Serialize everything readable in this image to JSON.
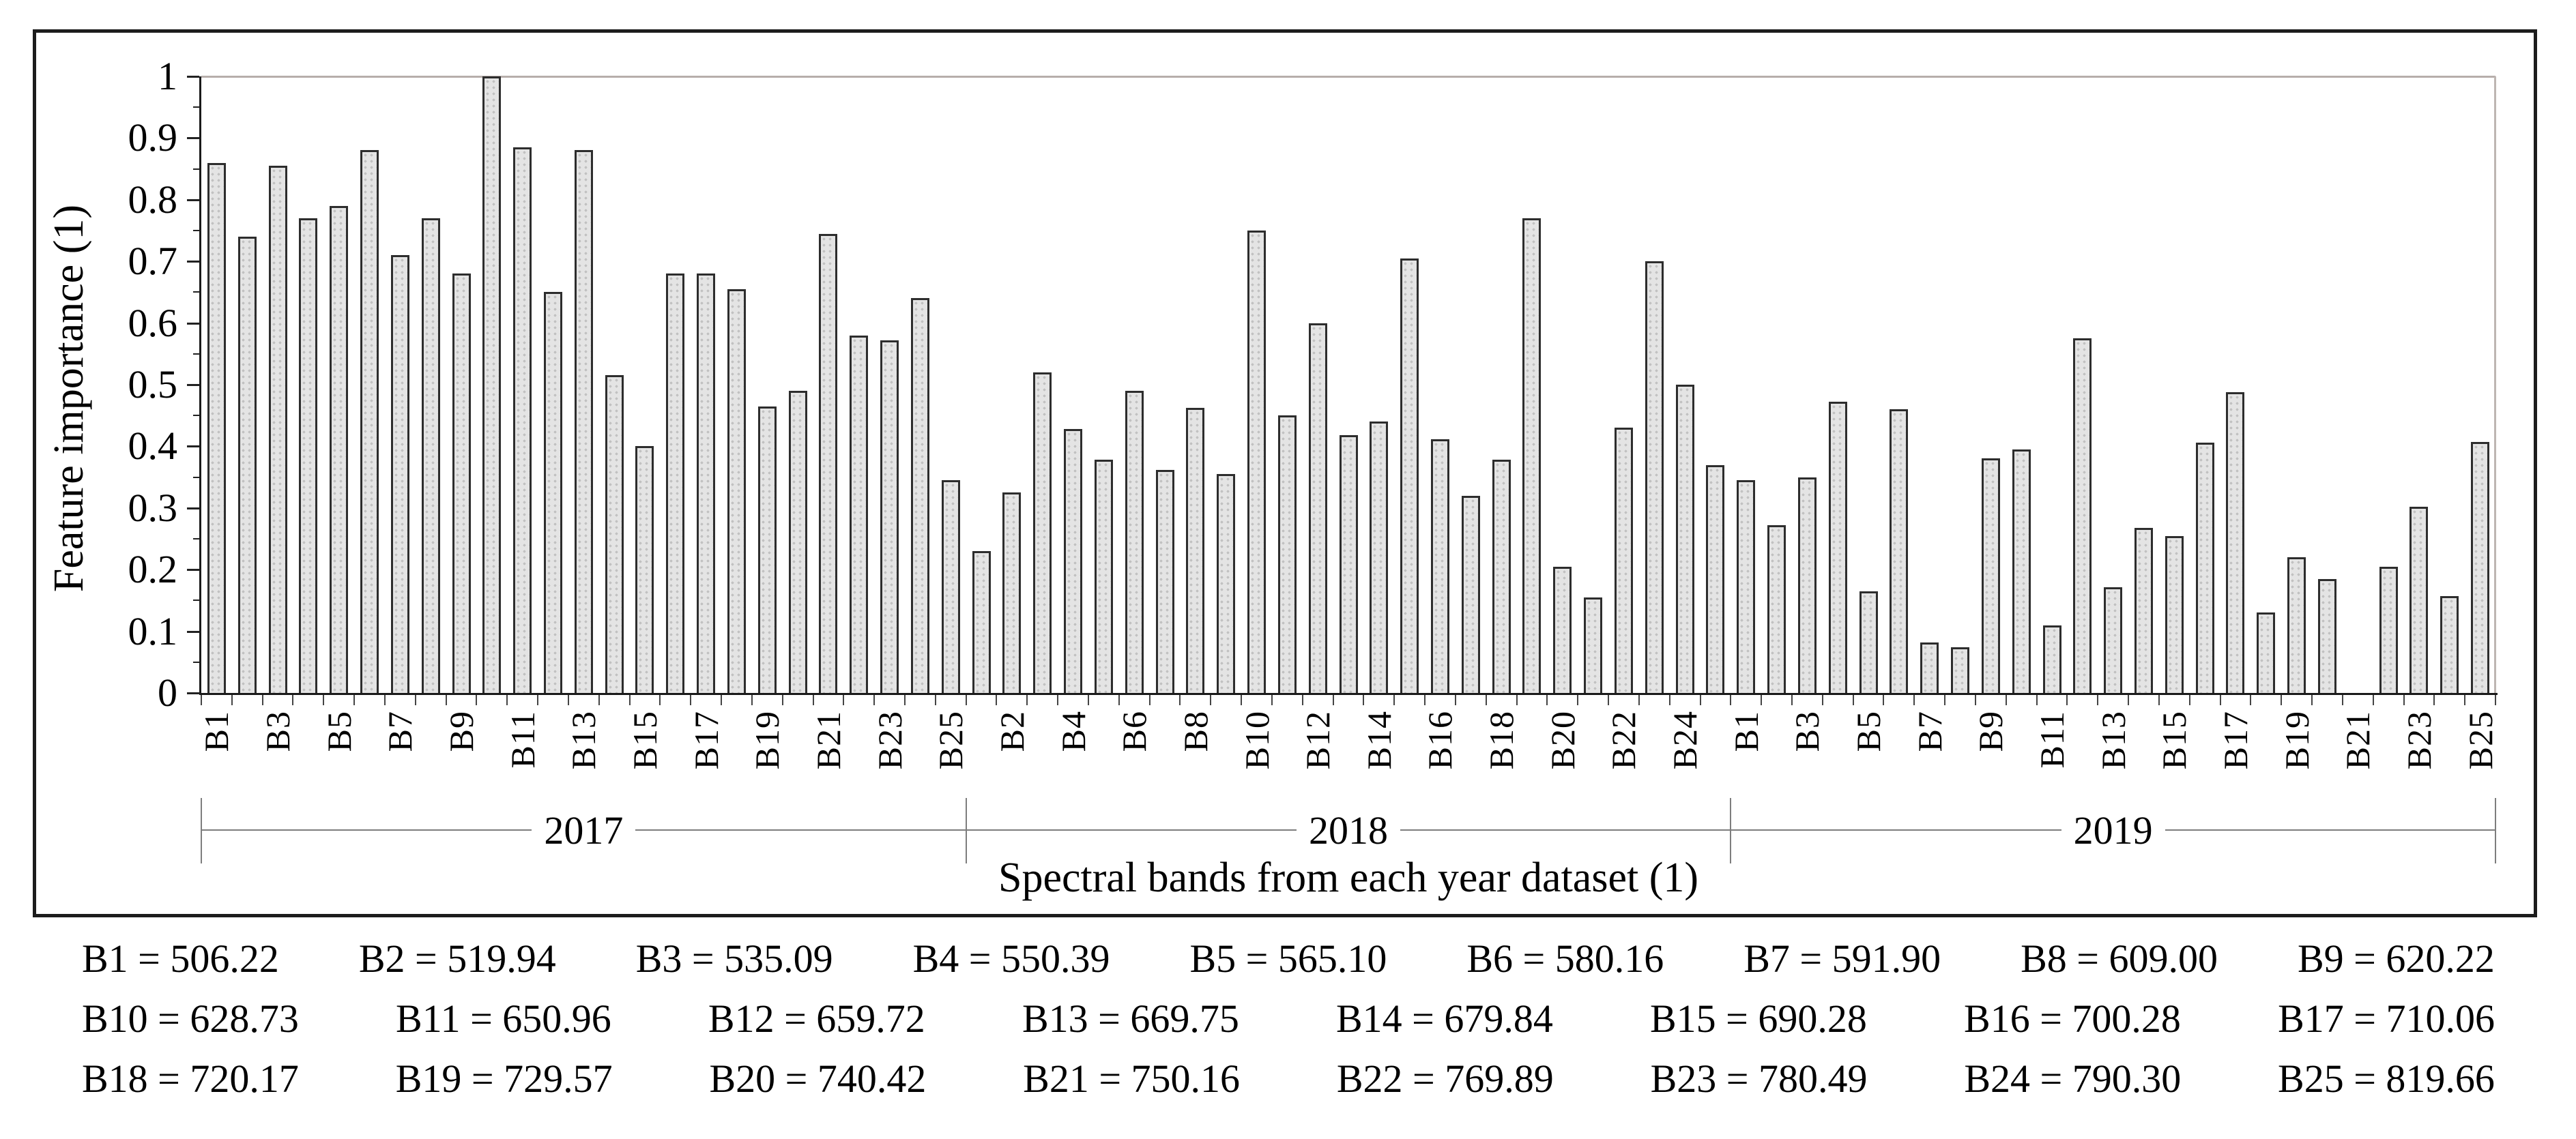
{
  "chart_data": {
    "type": "bar",
    "title": "",
    "xlabel": "Spectral bands from each year dataset (1)",
    "ylabel": "Feature importance (1)",
    "ylim": [
      0,
      1
    ],
    "y_major_step": 0.1,
    "y_minor_step": 0.05,
    "grid": "top-line-only",
    "legend_position": "none",
    "bar_fill": "#e4e4e4",
    "bar_border": "#2d2d2d",
    "tick_label_every": 2,
    "groups": [
      {
        "year": "2017",
        "categories": [
          "B1",
          "B2",
          "B3",
          "B4",
          "B5",
          "B6",
          "B7",
          "B8",
          "B9",
          "B10",
          "B11",
          "B12",
          "B13",
          "B14",
          "B15",
          "B16",
          "B17",
          "B18",
          "B19",
          "B20",
          "B21",
          "B22",
          "B23",
          "B24",
          "B25"
        ],
        "values": [
          0.86,
          0.74,
          0.855,
          0.77,
          0.79,
          0.88,
          0.71,
          0.77,
          0.68,
          1.0,
          0.885,
          0.65,
          0.88,
          0.515,
          0.4,
          0.68,
          0.68,
          0.655,
          0.465,
          0.49,
          0.745,
          0.58,
          0.572,
          0.64,
          0.345
        ]
      },
      {
        "year": "2018",
        "categories": [
          "B1",
          "B2",
          "B3",
          "B4",
          "B5",
          "B6",
          "B7",
          "B8",
          "B9",
          "B10",
          "B11",
          "B12",
          "B13",
          "B14",
          "B15",
          "B16",
          "B17",
          "B18",
          "B19",
          "B20",
          "B21",
          "B22",
          "B23",
          "B24",
          "B25"
        ],
        "values": [
          0.23,
          0.325,
          0.52,
          0.428,
          0.378,
          0.49,
          0.362,
          0.462,
          0.355,
          0.75,
          0.45,
          0.6,
          0.418,
          0.44,
          0.705,
          0.412,
          0.32,
          0.378,
          0.77,
          0.205,
          0.155,
          0.43,
          0.7,
          0.5,
          0.37
        ]
      },
      {
        "year": "2019",
        "categories": [
          "B1",
          "B2",
          "B3",
          "B4",
          "B5",
          "B6",
          "B7",
          "B8",
          "B9",
          "B10",
          "B11",
          "B12",
          "B13",
          "B14",
          "B15",
          "B16",
          "B17",
          "B18",
          "B19",
          "B20",
          "B21",
          "B22",
          "B23",
          "B24",
          "B25"
        ],
        "values": [
          0.345,
          0.272,
          0.35,
          0.472,
          0.165,
          0.46,
          0.082,
          0.074,
          0.38,
          0.395,
          0.11,
          0.575,
          0.172,
          0.268,
          0.254,
          0.406,
          0.488,
          0.13,
          0.22,
          0.185,
          null,
          0.205,
          0.302,
          0.157,
          0.407
        ]
      }
    ]
  },
  "y_axis": {
    "title": "Feature importance (1)"
  },
  "x_axis": {
    "title": "Spectral bands from each year dataset (1)"
  },
  "legend": {
    "rows": [
      [
        "B1 = 506.22",
        "B2 = 519.94",
        "B3 = 535.09",
        "B4 = 550.39",
        "B5 = 565.10",
        "B6 = 580.16",
        "B7 = 591.90",
        "B8 = 609.00",
        "B9 = 620.22"
      ],
      [
        "B10 = 628.73",
        "B11 = 650.96",
        "B12 = 659.72",
        "B13 = 669.75",
        "B14 = 679.84",
        "B15 = 690.28",
        "B16 = 700.28",
        "B17 = 710.06"
      ],
      [
        "B18 = 720.17",
        "B19 = 729.57",
        "B20 = 740.42",
        "B21 = 750.16",
        "B22 = 769.89",
        "B23 = 780.49",
        "B24 = 790.30",
        "B25 = 819.66"
      ]
    ]
  }
}
